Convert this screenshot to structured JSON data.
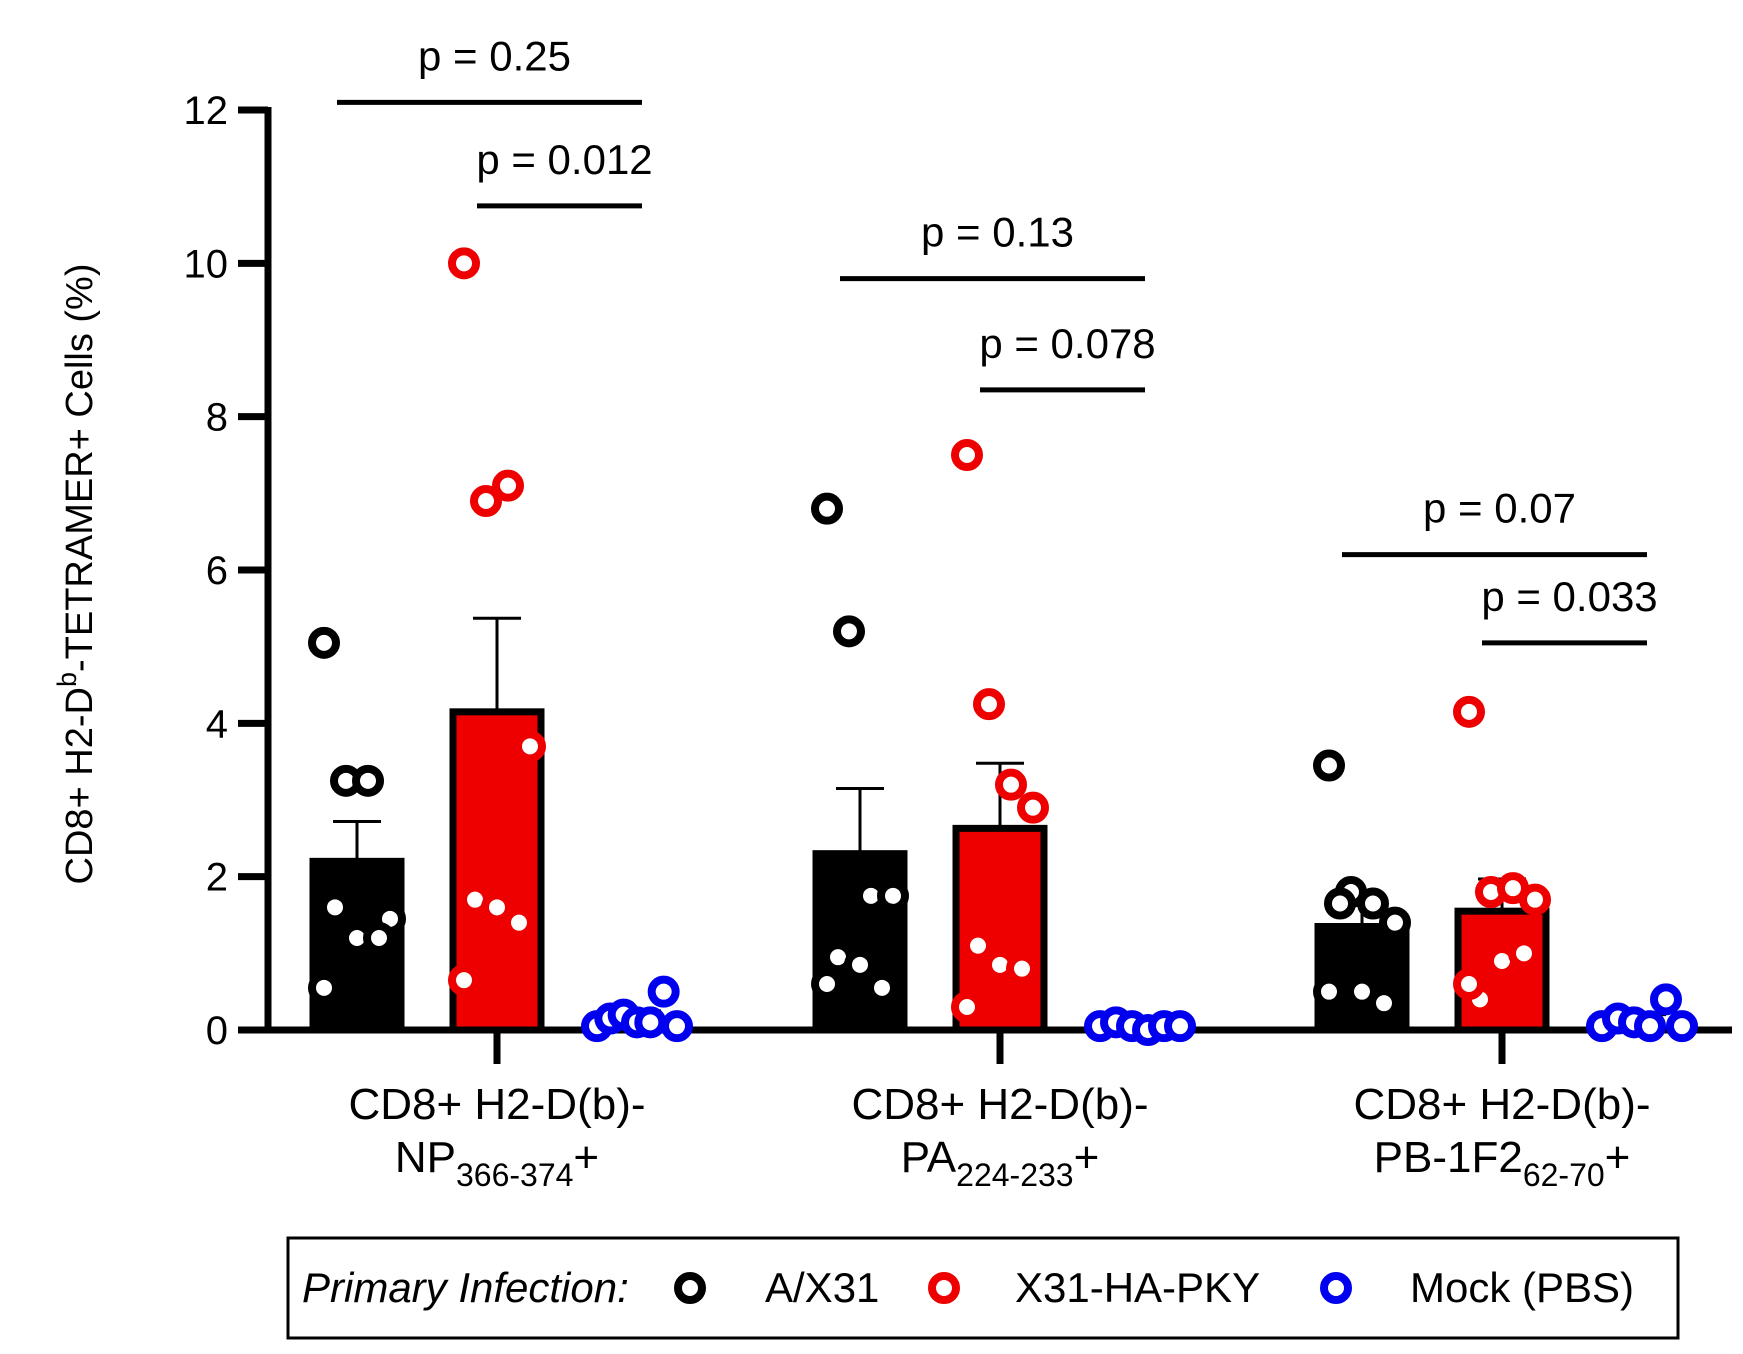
{
  "chart_data": {
    "type": "bar",
    "ylabel": {
      "pre": "CD8+ H2-D",
      "sup": "b",
      "post": "-TETRAMER+ Cells (%)"
    },
    "ylim": [
      0,
      12
    ],
    "yticks": [
      0,
      2,
      4,
      6,
      8,
      10,
      12
    ],
    "ytick_labels": [
      "0",
      "2",
      "4",
      "6",
      "8",
      "10",
      "12"
    ],
    "categories": [
      {
        "line1": "CD8+ H2-D(b)-",
        "base": "NP",
        "sub": "366-374",
        "suffix": "+"
      },
      {
        "line1": "CD8+ H2-D(b)-",
        "base": "PA",
        "sub": "224-233",
        "suffix": "+"
      },
      {
        "line1": "CD8+ H2-D(b)-",
        "base": "PB-1F2",
        "sub": "62-70",
        "suffix": "+"
      }
    ],
    "series": [
      {
        "name": "A/X31",
        "color": "#000000",
        "means": [
          2.2,
          2.3,
          1.35
        ],
        "sem": [
          0.52,
          0.85,
          0.35
        ],
        "points": [
          [
            5.05,
            3.25,
            3.25,
            1.45,
            1.6,
            1.2,
            1.2,
            0.55
          ],
          [
            6.8,
            5.2,
            1.75,
            1.75,
            0.95,
            0.85,
            0.55,
            0.6
          ],
          [
            3.45,
            1.8,
            1.65,
            1.4,
            1.65,
            0.5,
            0.35,
            0.5
          ]
        ]
      },
      {
        "name": "X31-HA-PKY",
        "color": "#ee0000",
        "means": [
          4.15,
          2.63,
          1.55
        ],
        "sem": [
          1.22,
          0.85,
          0.42
        ],
        "points": [
          [
            10.0,
            6.9,
            7.1,
            3.7,
            1.7,
            1.6,
            1.4,
            0.65
          ],
          [
            7.5,
            4.25,
            3.2,
            2.9,
            1.1,
            0.85,
            0.8,
            0.3
          ],
          [
            4.15,
            1.8,
            1.85,
            1.7,
            0.4,
            0.9,
            1.0,
            0.6
          ]
        ]
      },
      {
        "name": "Mock (PBS)",
        "color": "#0000ee",
        "means": [
          0.2,
          0.08,
          0.15
        ],
        "sem": [
          0.05,
          0.02,
          0.05
        ],
        "points": [
          [
            0.05,
            0.15,
            0.2,
            0.1,
            0.1,
            0.5,
            0.05
          ],
          [
            0.05,
            0.1,
            0.05,
            0.0,
            0.05,
            0.05
          ],
          [
            0.05,
            0.15,
            0.1,
            0.05,
            0.4,
            0.05
          ]
        ]
      }
    ],
    "comparisons": [
      {
        "category": 0,
        "from": 0,
        "to": 2,
        "label": "p = 0.25",
        "level": 12.1
      },
      {
        "category": 0,
        "from": 1,
        "to": 2,
        "label": "p = 0.012",
        "level": 10.75
      },
      {
        "category": 1,
        "from": 0,
        "to": 2,
        "label": "p = 0.13",
        "level": 9.8
      },
      {
        "category": 1,
        "from": 1,
        "to": 2,
        "label": "p = 0.078",
        "level": 8.35
      },
      {
        "category": 2,
        "from": 0,
        "to": 2,
        "label": "p = 0.07",
        "level": 6.2
      },
      {
        "category": 2,
        "from": 1,
        "to": 2,
        "label": "p = 0.033",
        "level": 5.05
      }
    ],
    "legend": {
      "title": "Primary Infection:",
      "placement": "bottom"
    }
  }
}
